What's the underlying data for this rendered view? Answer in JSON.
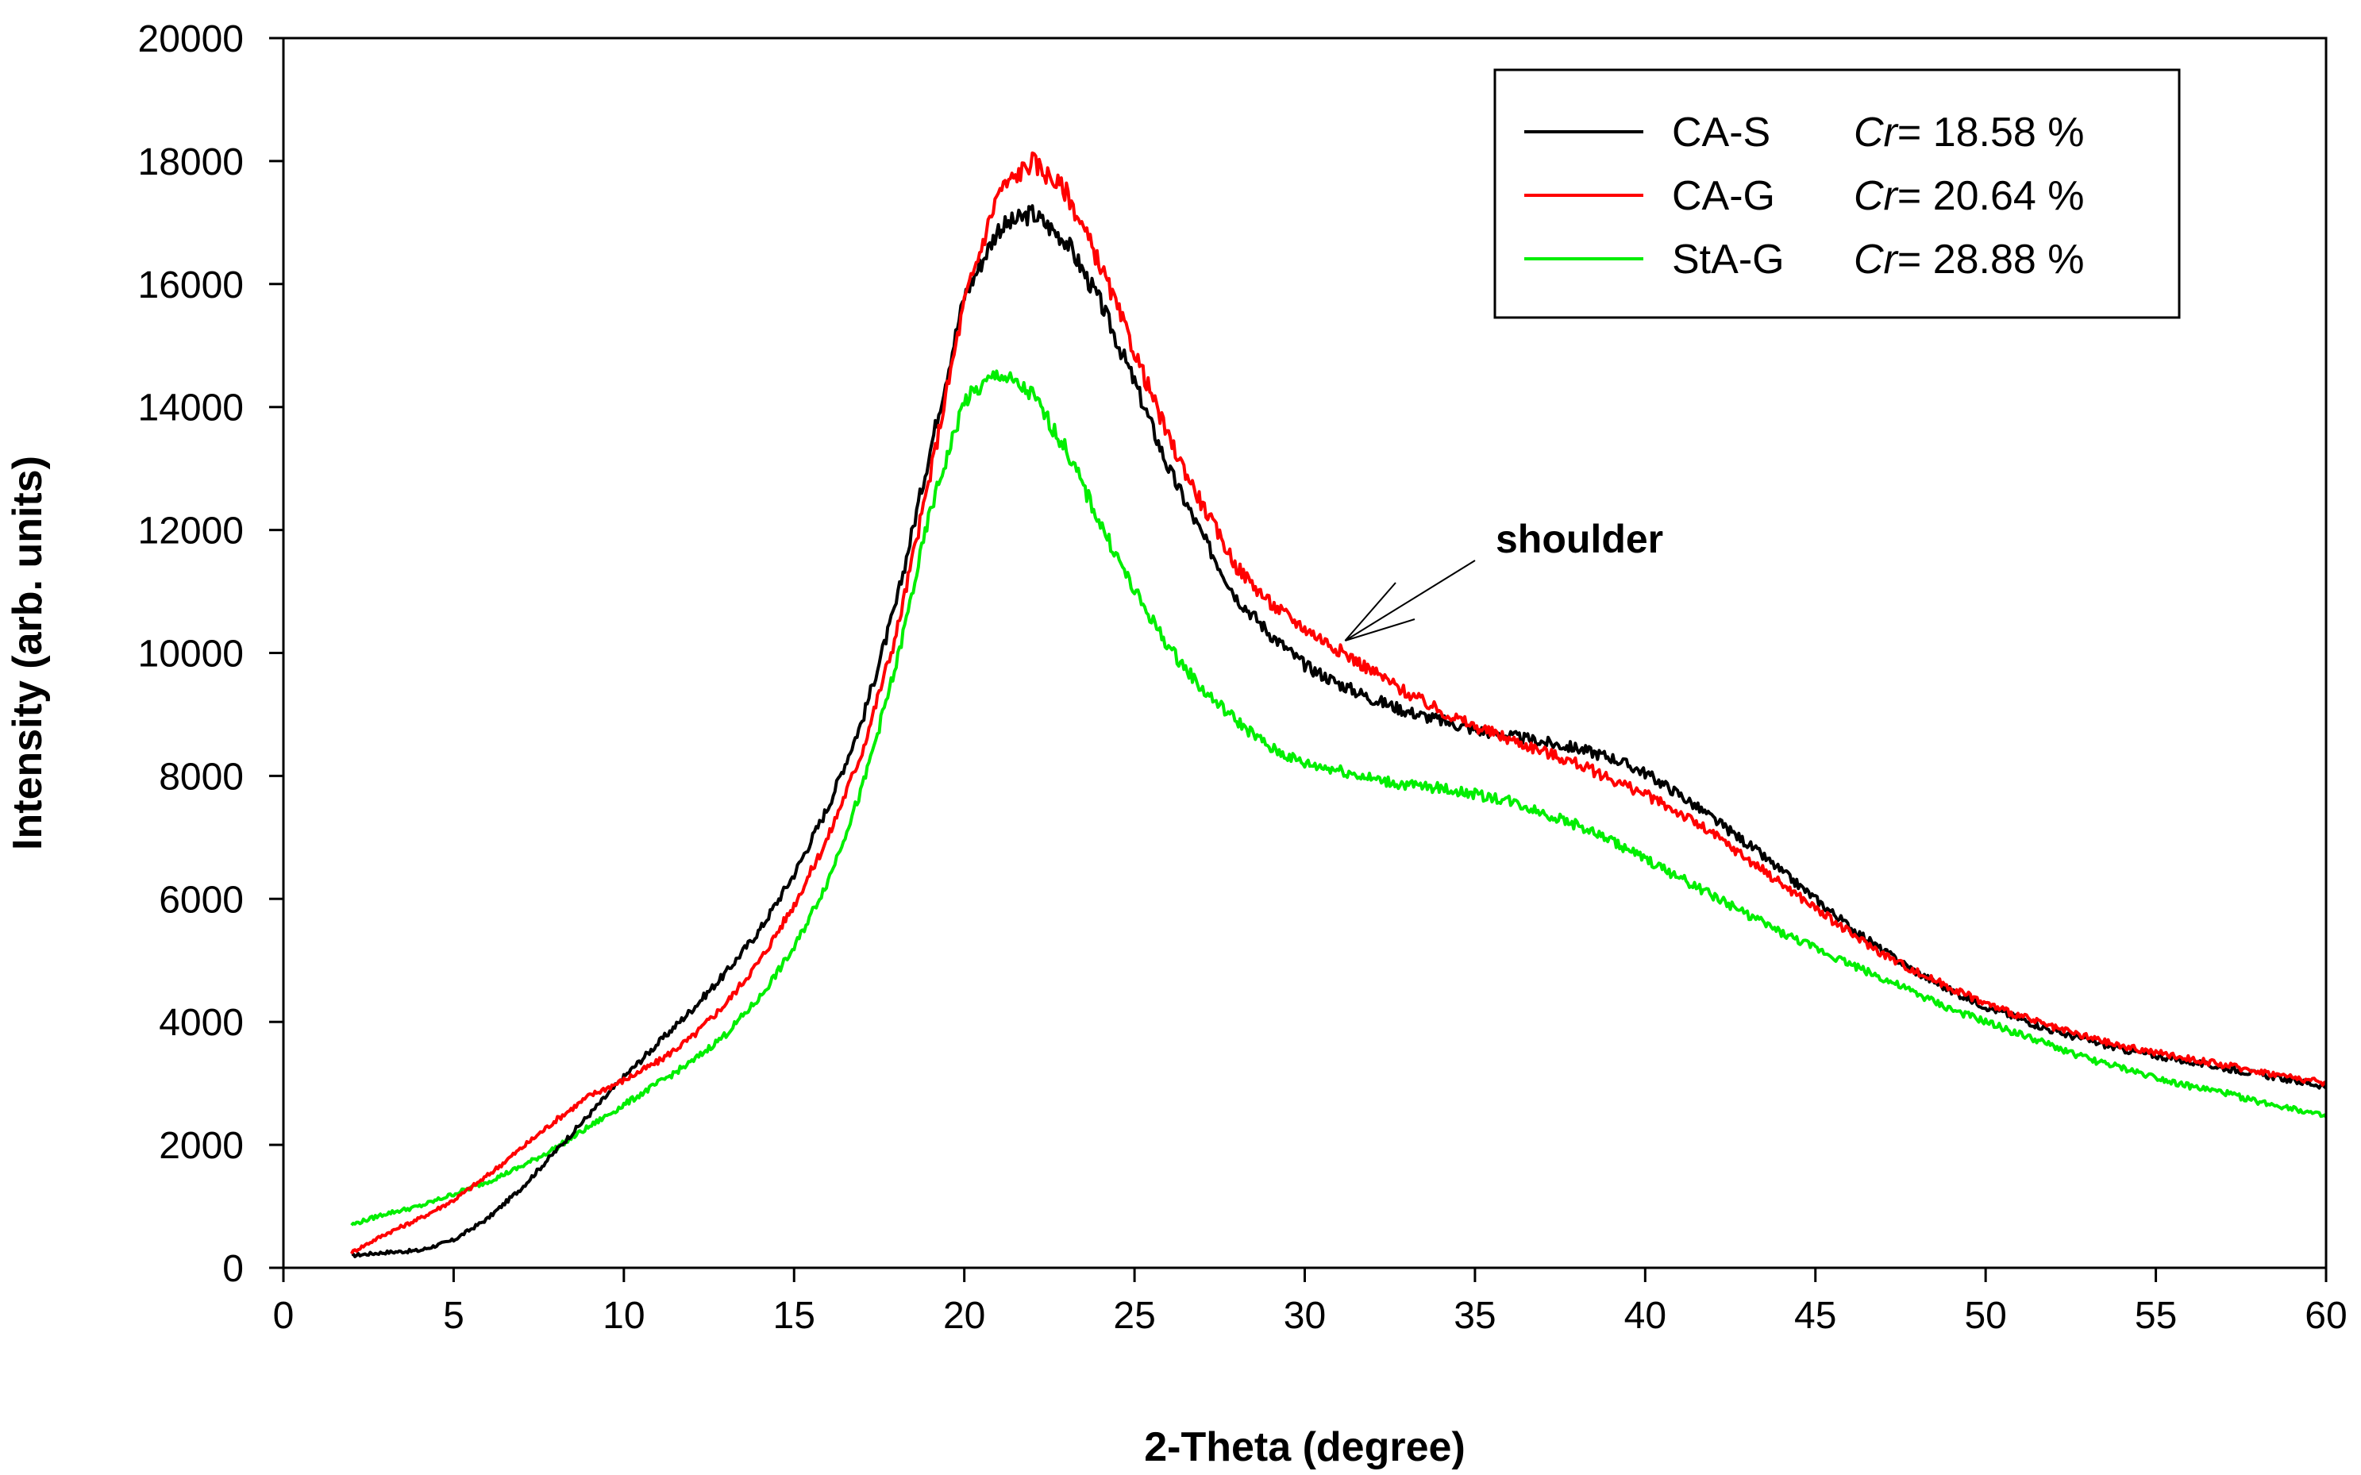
{
  "chart_data": {
    "type": "line",
    "title": "",
    "xlabel": "2-Theta (degree)",
    "ylabel": "Intensity (arb. units)",
    "xlim": [
      0,
      60
    ],
    "ylim": [
      0,
      20000
    ],
    "x_ticks": [
      0,
      5,
      10,
      15,
      20,
      25,
      30,
      35,
      40,
      45,
      50,
      55,
      60
    ],
    "y_ticks": [
      0,
      2000,
      4000,
      6000,
      8000,
      10000,
      12000,
      14000,
      16000,
      18000,
      20000
    ],
    "grid": false,
    "legend_position": "top-right",
    "x": [
      2,
      3,
      4,
      5,
      6,
      7,
      8,
      9,
      10,
      11,
      12,
      13,
      14,
      15,
      16,
      17,
      18,
      19,
      20,
      21,
      22,
      23,
      24,
      25,
      26,
      27,
      28,
      29,
      30,
      31,
      32,
      33,
      34,
      35,
      36,
      37,
      38,
      39,
      40,
      41,
      42,
      43,
      44,
      45,
      46,
      47,
      48,
      49,
      50,
      51,
      52,
      53,
      54,
      55,
      56,
      57,
      58,
      59,
      60
    ],
    "series": [
      {
        "name": "CA-S",
        "cr_prefix": "Cr",
        "cr_value": "= 18.58 %",
        "color": "#000000",
        "values": [
          200,
          250,
          280,
          450,
          800,
          1300,
          1900,
          2500,
          3100,
          3650,
          4200,
          4800,
          5500,
          6400,
          7500,
          8900,
          10800,
          13300,
          15800,
          16900,
          17150,
          16700,
          15700,
          14400,
          13000,
          11900,
          10900,
          10300,
          9800,
          9500,
          9250,
          9050,
          8900,
          8750,
          8650,
          8550,
          8450,
          8300,
          8050,
          7700,
          7300,
          6900,
          6450,
          6000,
          5550,
          5150,
          4800,
          4500,
          4250,
          4050,
          3850,
          3700,
          3550,
          3450,
          3350,
          3250,
          3150,
          3050,
          2950
        ]
      },
      {
        "name": "CA-G",
        "cr_prefix": "Cr",
        "cr_value": "= 20.64 %",
        "color": "#ff0000",
        "values": [
          250,
          550,
          800,
          1100,
          1500,
          1950,
          2400,
          2800,
          3050,
          3350,
          3750,
          4300,
          5000,
          5900,
          7000,
          8400,
          10300,
          12900,
          15700,
          17500,
          18000,
          17500,
          16300,
          14900,
          13500,
          12400,
          11400,
          10800,
          10400,
          10050,
          9700,
          9350,
          9050,
          8800,
          8600,
          8400,
          8200,
          7950,
          7700,
          7400,
          7050,
          6650,
          6250,
          5850,
          5450,
          5100,
          4800,
          4550,
          4300,
          4100,
          3900,
          3750,
          3600,
          3500,
          3400,
          3300,
          3200,
          3100,
          3000
        ]
      },
      {
        "name": "StA-G",
        "cr_prefix": "Cr",
        "cr_value": "= 28.88 %",
        "color": "#00ee00",
        "values": [
          700,
          880,
          1000,
          1200,
          1400,
          1650,
          1950,
          2300,
          2650,
          3000,
          3350,
          3800,
          4400,
          5200,
          6300,
          7800,
          9800,
          12300,
          14100,
          14550,
          14200,
          13300,
          12100,
          11000,
          10100,
          9400,
          8900,
          8450,
          8200,
          8100,
          7950,
          7850,
          7800,
          7700,
          7600,
          7400,
          7200,
          6950,
          6650,
          6350,
          6050,
          5750,
          5450,
          5200,
          4950,
          4700,
          4450,
          4200,
          4000,
          3800,
          3600,
          3400,
          3250,
          3100,
          2950,
          2850,
          2700,
          2600,
          2450
        ]
      }
    ],
    "annotations": [
      {
        "text": "shoulder",
        "points_to_x": 31,
        "points_to_y": 10200
      }
    ]
  }
}
